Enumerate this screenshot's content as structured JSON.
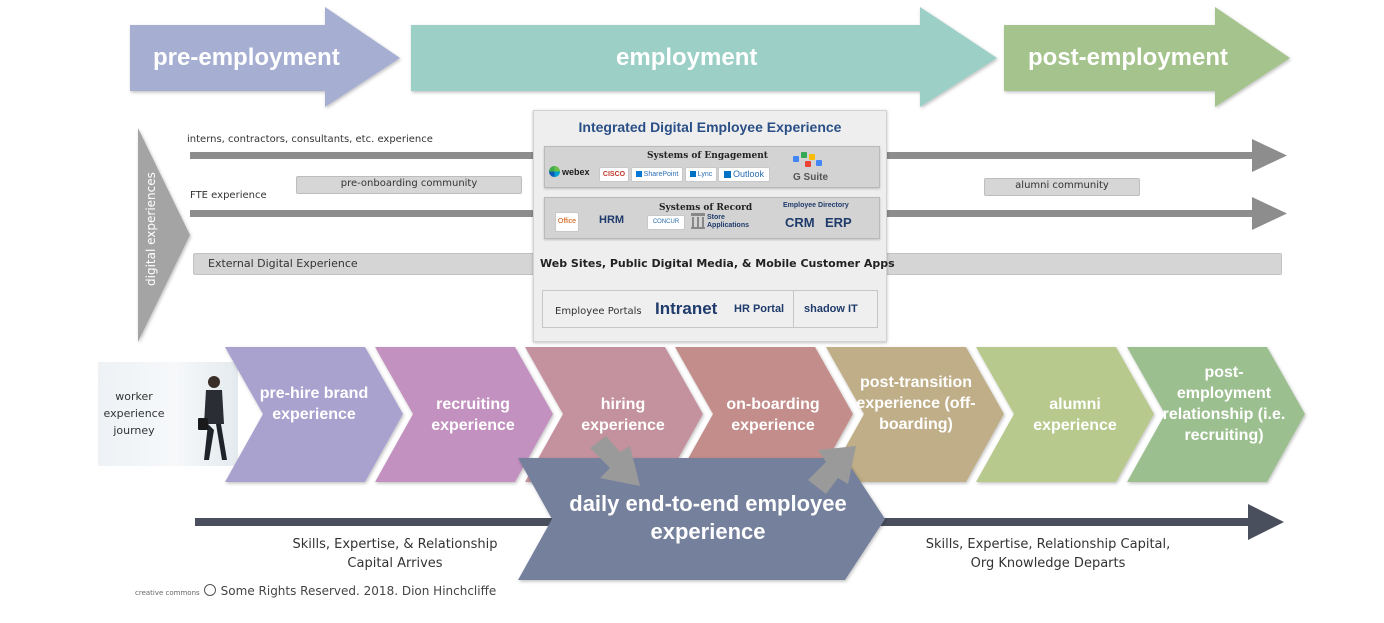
{
  "phases": {
    "pre": "pre-employment",
    "employment": "employment",
    "post": "post-employment"
  },
  "side_label": "digital experiences",
  "tracks": {
    "interns": "interns, contractors, consultants, etc. experience",
    "fte": "FTE experience",
    "pre_onboarding": "pre-onboarding community",
    "alumni": "alumni community",
    "external": "External Digital Experience"
  },
  "panel": {
    "title": "Integrated Digital Employee Experience",
    "engagement": {
      "title": "Systems of Engagement",
      "webex": "webex",
      "cisco": "CISCO",
      "sharepoint": "SharePoint",
      "lync": "Lync",
      "outlook": "Outlook",
      "gsuite": "G Suite"
    },
    "record": {
      "title": "Systems of Record",
      "office": "Office",
      "hrm": "HRM",
      "concur": "CONCUR",
      "store": "Store Applications",
      "directory": "Employee Directory",
      "crm": "CRM",
      "erp": "ERP"
    },
    "web_sites": "Web Sites, Public Digital Media, & Mobile Customer Apps",
    "portals": {
      "label": "Employee Portals",
      "intranet": "Intranet",
      "hr_portal": "HR Portal",
      "shadow": "shadow IT"
    }
  },
  "journey": {
    "label": "worker experience journey",
    "stages": [
      "pre-hire brand experience",
      "recruiting experience",
      "hiring experience",
      "on-boarding experience",
      "post-transition experience (off-boarding)",
      "alumni experience",
      "post-employment relationship (i.e. recruiting)"
    ]
  },
  "daily": "daily end-to-end employee experience",
  "bottom": {
    "left_line1": "Skills, Expertise, & Relationship",
    "left_line2": "Capital Arrives",
    "right_line1": "Skills, Expertise, Relationship Capital,",
    "right_line2": "Org Knowledge Departs"
  },
  "footer": {
    "cc": "creative commons",
    "text": "Some Rights Reserved. 2018. Dion Hinchcliffe"
  },
  "colors": {
    "pre": "#a6aed2",
    "employment": "#9ccfc6",
    "post": "#a5c38c",
    "stage1": "#a9a1ce",
    "stage2": "#c291bf",
    "stage3": "#c4919e",
    "stage4": "#c28d8a",
    "stage5": "#bfae87",
    "stage6": "#b7c98c",
    "stage7": "#9cbf8f",
    "daily": "#75809d",
    "timeline": "#4a4f5e"
  }
}
